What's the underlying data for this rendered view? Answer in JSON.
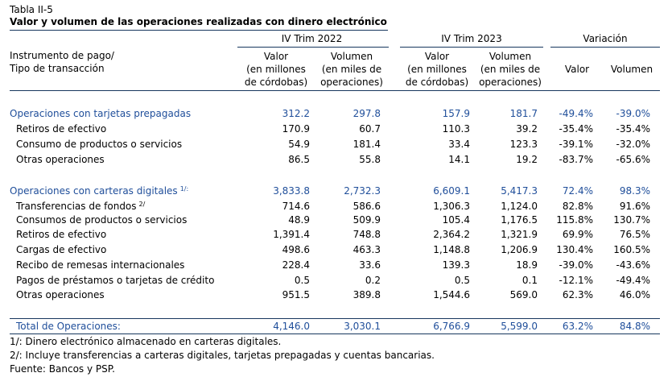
{
  "title": {
    "code": "Tabla II-5",
    "text": "Valor y volumen de las operaciones realizadas con dinero electrónico"
  },
  "header": {
    "row_label_line1": "Instrumento de pago/",
    "row_label_line2": "Tipo de transacción",
    "periods": [
      "IV Trim 2022",
      "IV Trim 2023",
      "Variación"
    ],
    "valor_l1": "Valor",
    "valor_l2": "(en millones",
    "valor_l3": "de córdobas)",
    "vol_l1": "Volumen",
    "vol_l2": "(en miles de",
    "vol_l3": "operaciones)",
    "var_valor": "Valor",
    "var_volumen": "Volumen"
  },
  "rows": [
    {
      "label": "Operaciones con tarjetas prepagadas",
      "sup": "",
      "v22": "312.2",
      "o22": "297.8",
      "v23": "157.9",
      "o23": "181.7",
      "vv": "-49.4%",
      "vo": "-39.0%"
    },
    {
      "label": "Retiros de efectivo",
      "sup": "",
      "v22": "170.9",
      "o22": "60.7",
      "v23": "110.3",
      "o23": "39.2",
      "vv": "-35.4%",
      "vo": "-35.4%"
    },
    {
      "label": "Consumo de productos o servicios",
      "sup": "",
      "v22": "54.9",
      "o22": "181.4",
      "v23": "33.4",
      "o23": "123.3",
      "vv": "-39.1%",
      "vo": "-32.0%"
    },
    {
      "label": "Otras operaciones",
      "sup": "",
      "v22": "86.5",
      "o22": "55.8",
      "v23": "14.1",
      "o23": "19.2",
      "vv": "-83.7%",
      "vo": "-65.6%"
    },
    {
      "label": "Operaciones con carteras digitales",
      "sup": "1/:",
      "v22": "3,833.8",
      "o22": "2,732.3",
      "v23": "6,609.1",
      "o23": "5,417.3",
      "vv": "72.4%",
      "vo": "98.3%"
    },
    {
      "label": "Transferencias de fondos",
      "sup": "2/",
      "v22": "714.6",
      "o22": "586.6",
      "v23": "1,306.3",
      "o23": "1,124.0",
      "vv": "82.8%",
      "vo": "91.6%"
    },
    {
      "label": "Consumos de productos o servicios",
      "sup": "",
      "v22": "48.9",
      "o22": "509.9",
      "v23": "105.4",
      "o23": "1,176.5",
      "vv": "115.8%",
      "vo": "130.7%"
    },
    {
      "label": "Retiros de efectivo",
      "sup": "",
      "v22": "1,391.4",
      "o22": "748.8",
      "v23": "2,364.2",
      "o23": "1,321.9",
      "vv": "69.9%",
      "vo": "76.5%"
    },
    {
      "label": "Cargas de efectivo",
      "sup": "",
      "v22": "498.6",
      "o22": "463.3",
      "v23": "1,148.8",
      "o23": "1,206.9",
      "vv": "130.4%",
      "vo": "160.5%"
    },
    {
      "label": "Recibo de remesas internacionales",
      "sup": "",
      "v22": "228.4",
      "o22": "33.6",
      "v23": "139.3",
      "o23": "18.9",
      "vv": "-39.0%",
      "vo": "-43.6%"
    },
    {
      "label": "Pagos de préstamos o tarjetas de crédito",
      "sup": "",
      "v22": "0.5",
      "o22": "0.2",
      "v23": "0.5",
      "o23": "0.1",
      "vv": "-12.1%",
      "vo": "-49.4%"
    },
    {
      "label": "Otras operaciones",
      "sup": "",
      "v22": "951.5",
      "o22": "389.8",
      "v23": "1,544.6",
      "o23": "569.0",
      "vv": "62.3%",
      "vo": "46.0%"
    },
    {
      "label": "Total de Operaciones:",
      "sup": "",
      "v22": "4,146.0",
      "o22": "3,030.1",
      "v23": "6,766.9",
      "o23": "5,599.0",
      "vv": "63.2%",
      "vo": "84.8%"
    }
  ],
  "notes": [
    "1/: Dinero electrónico almacenado en carteras digitales.",
    "2/: Incluye transferencias a carteras digitales, tarjetas prepagadas y cuentas bancarias.",
    "Fuente: Bancos y PSP."
  ],
  "colors": {
    "heading_blue": "#1f4e9a",
    "rule_navy": "#17375e"
  }
}
